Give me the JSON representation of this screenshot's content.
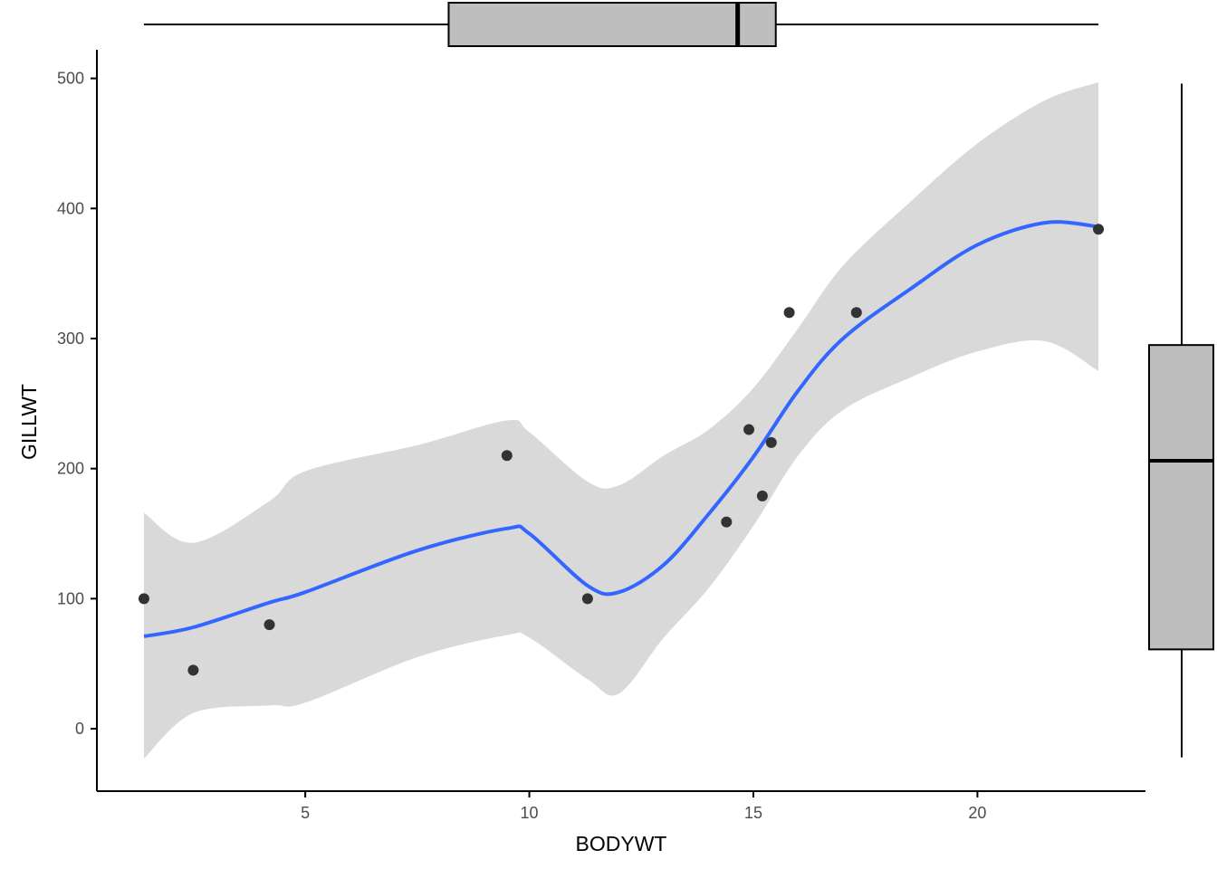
{
  "chart_data": {
    "type": "scatter",
    "title": "",
    "xlabel": "BODYWT",
    "ylabel": "GILLWT",
    "xlim": [
      0.35,
      23.75
    ],
    "ylim": [
      -48,
      522
    ],
    "x_ticks": [
      5,
      10,
      15,
      20
    ],
    "y_ticks": [
      0,
      100,
      200,
      300,
      400,
      500
    ],
    "grid": false,
    "points": [
      {
        "x": 1.4,
        "y": 100
      },
      {
        "x": 2.5,
        "y": 45
      },
      {
        "x": 4.2,
        "y": 80
      },
      {
        "x": 9.5,
        "y": 210
      },
      {
        "x": 11.3,
        "y": 100
      },
      {
        "x": 14.4,
        "y": 159
      },
      {
        "x": 14.9,
        "y": 230
      },
      {
        "x": 15.2,
        "y": 179
      },
      {
        "x": 15.4,
        "y": 220
      },
      {
        "x": 15.8,
        "y": 320
      },
      {
        "x": 17.3,
        "y": 320
      },
      {
        "x": 22.7,
        "y": 384
      }
    ],
    "smooth": {
      "method": "loess",
      "color": "#3366ff",
      "band_color": "#d9d9d9",
      "fit": [
        {
          "x": 1.4,
          "y": 71,
          "lo": -23,
          "hi": 166
        },
        {
          "x": 2.5,
          "y": 78,
          "lo": 12,
          "hi": 143
        },
        {
          "x": 4.2,
          "y": 97,
          "lo": 18,
          "hi": 175
        },
        {
          "x": 5.0,
          "y": 105,
          "lo": 20,
          "hi": 198
        },
        {
          "x": 7.5,
          "y": 137,
          "lo": 55,
          "hi": 218
        },
        {
          "x": 9.5,
          "y": 154,
          "lo": 72,
          "hi": 237
        },
        {
          "x": 10.0,
          "y": 150,
          "lo": 70,
          "hi": 228
        },
        {
          "x": 11.3,
          "y": 110,
          "lo": 38,
          "hi": 190
        },
        {
          "x": 12.0,
          "y": 105,
          "lo": 27,
          "hi": 187
        },
        {
          "x": 13.0,
          "y": 126,
          "lo": 70,
          "hi": 210
        },
        {
          "x": 14.0,
          "y": 165,
          "lo": 108,
          "hi": 230
        },
        {
          "x": 15.0,
          "y": 209,
          "lo": 156,
          "hi": 262
        },
        {
          "x": 16.0,
          "y": 260,
          "lo": 210,
          "hi": 308
        },
        {
          "x": 17.0,
          "y": 300,
          "lo": 245,
          "hi": 356
        },
        {
          "x": 18.5,
          "y": 338,
          "lo": 270,
          "hi": 405
        },
        {
          "x": 20.0,
          "y": 372,
          "lo": 290,
          "hi": 450
        },
        {
          "x": 21.5,
          "y": 389,
          "lo": 298,
          "hi": 483
        },
        {
          "x": 22.7,
          "y": 386,
          "lo": 275,
          "hi": 497
        }
      ]
    },
    "x_boxplot": {
      "min": 1.4,
      "q1": 8.2,
      "median": 14.65,
      "q3": 15.5,
      "max": 22.7,
      "fill": "#bebebe"
    },
    "y_boxplot": {
      "min": -22,
      "q1": 61,
      "median": 206,
      "q3": 295,
      "max": 496,
      "fill": "#bebebe"
    },
    "colors": {
      "point": "#333333",
      "axis": "#000000"
    }
  }
}
